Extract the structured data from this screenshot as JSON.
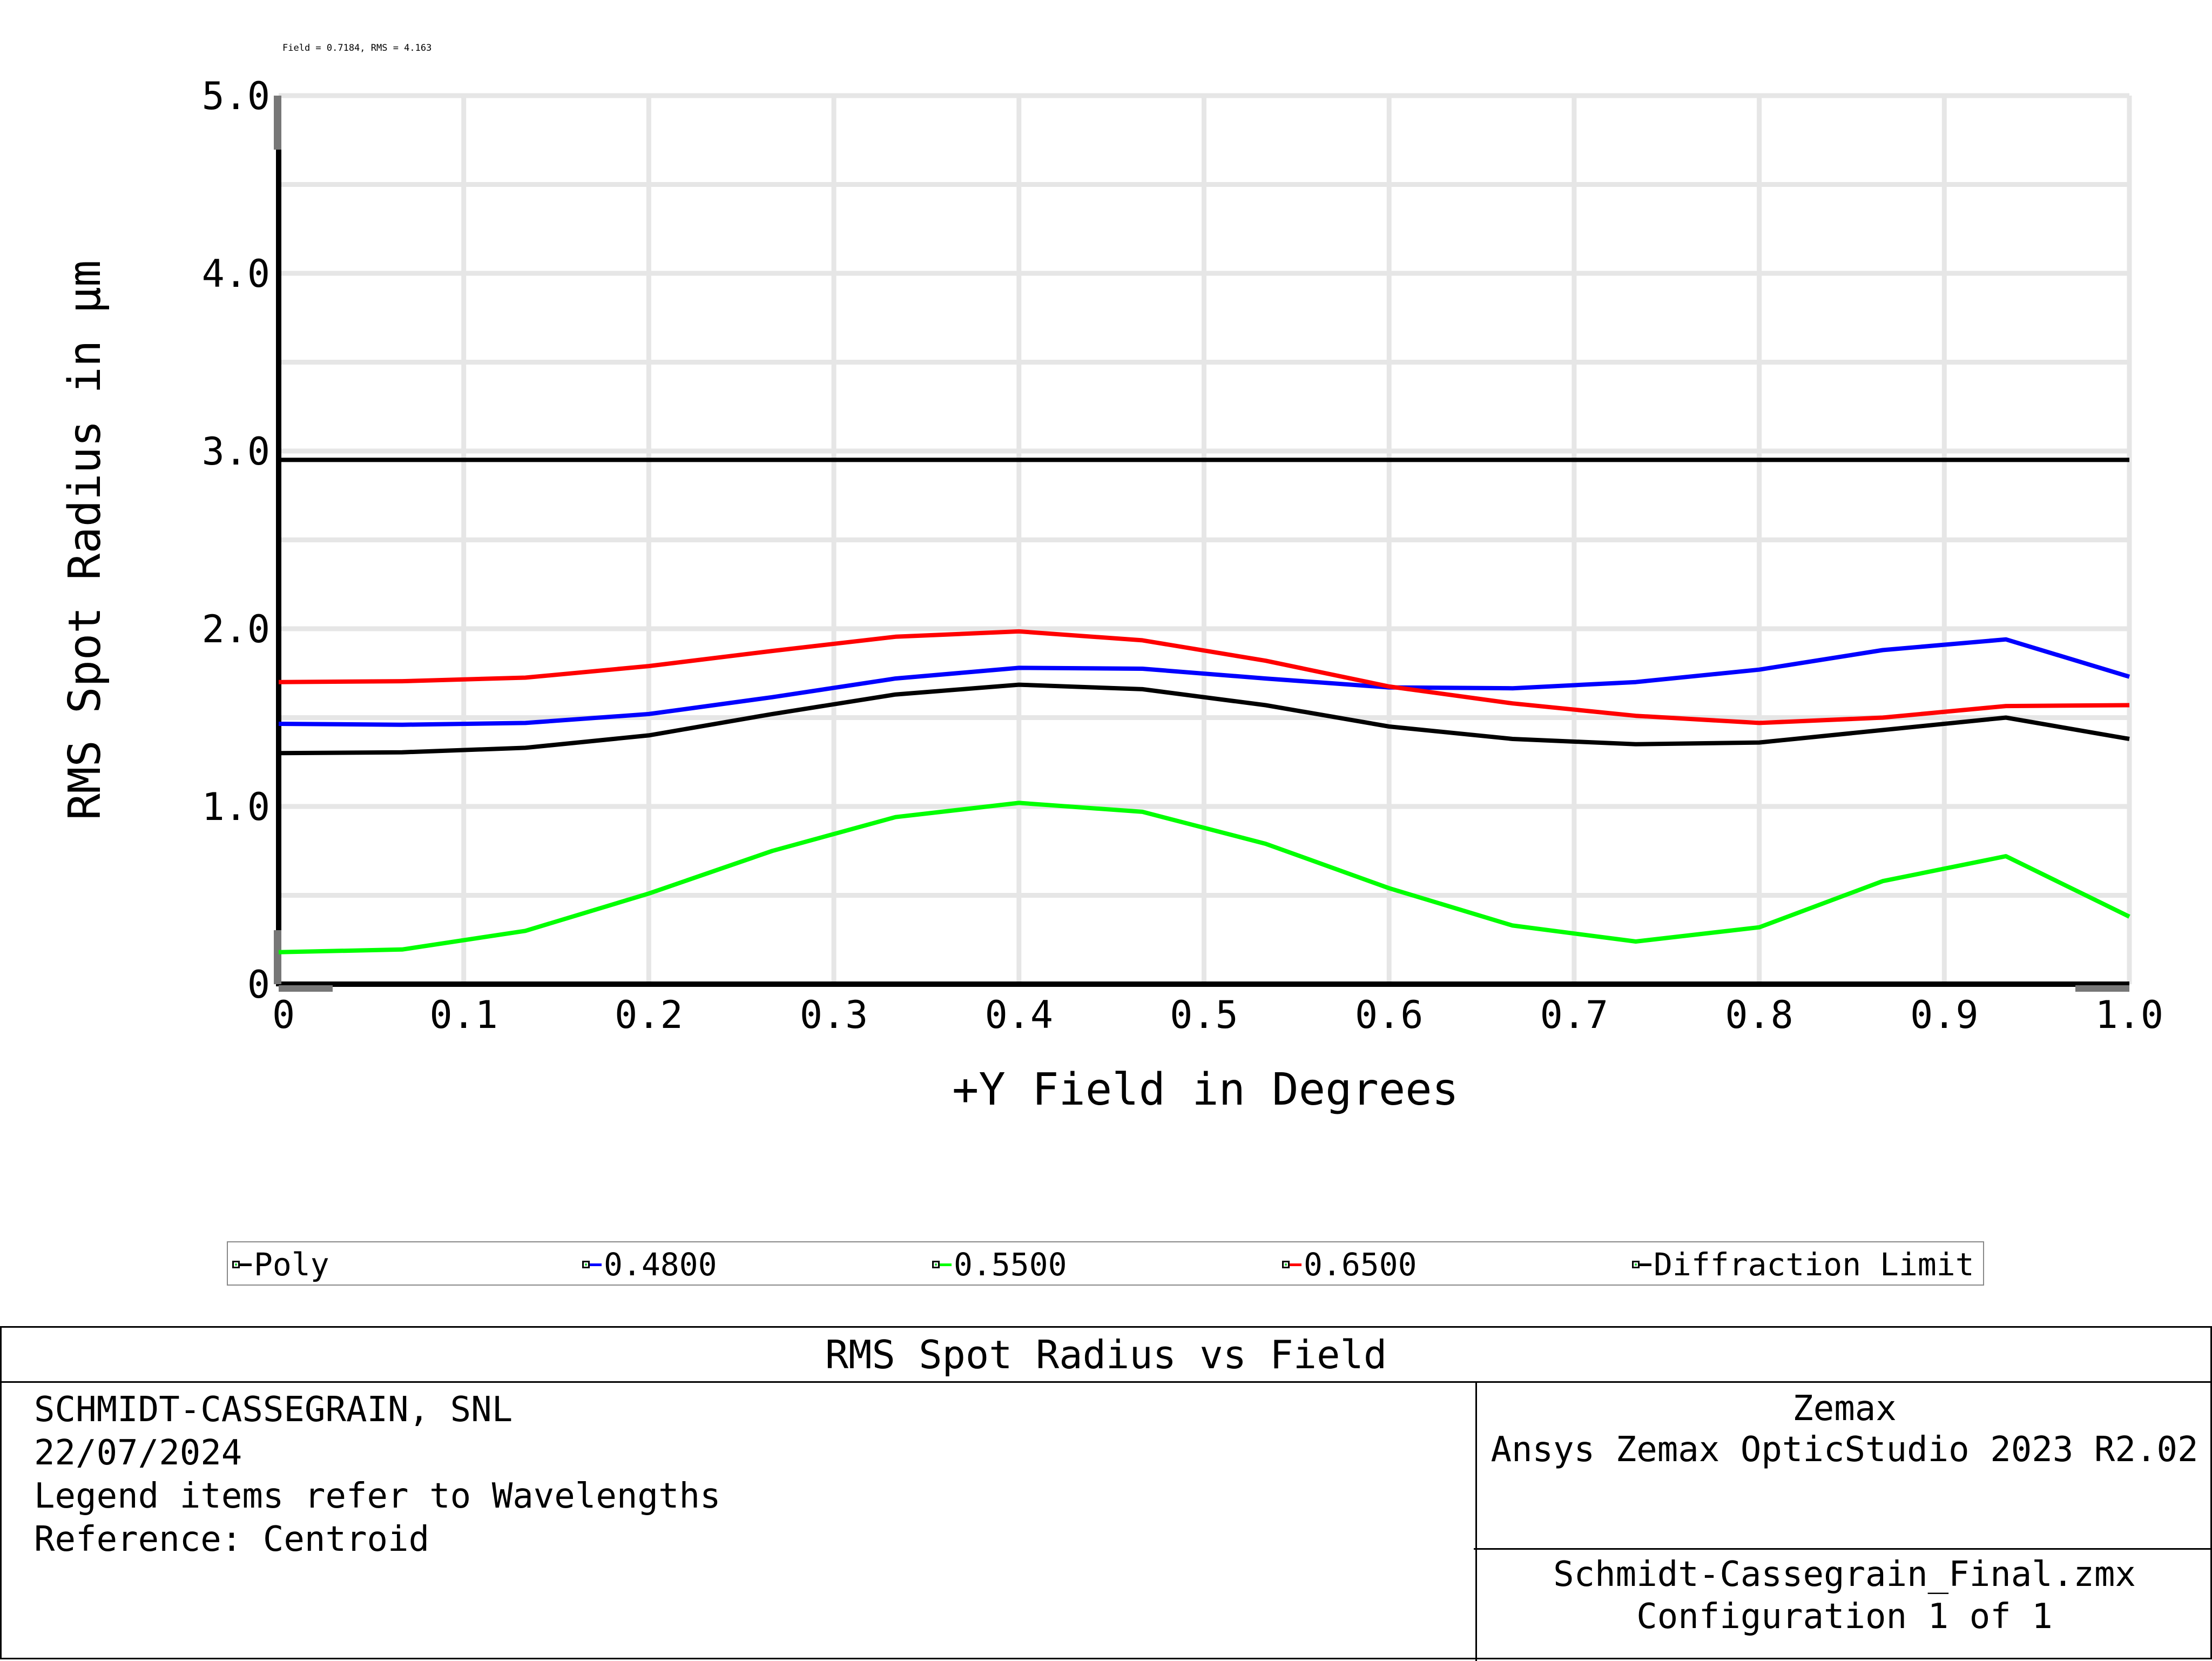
{
  "annotation": "Field = 0.7184, RMS = 4.163",
  "chart_data": {
    "type": "line",
    "xlabel": "+Y Field in Degrees",
    "ylabel": "RMS Spot Radius in µm",
    "xlim": [
      0,
      1.0
    ],
    "ylim": [
      0,
      5.0
    ],
    "x_ticks": [
      0,
      0.1,
      0.2,
      0.3,
      0.4,
      0.5,
      0.6,
      0.7,
      0.8,
      0.9,
      1.0
    ],
    "x_tick_labels": [
      "0",
      "0.1",
      "0.2",
      "0.3",
      "0.4",
      "0.5",
      "0.6",
      "0.7",
      "0.8",
      "0.9",
      "1.0"
    ],
    "y_ticks": [
      0,
      1.0,
      2.0,
      3.0,
      4.0,
      5.0
    ],
    "y_tick_labels": [
      "0",
      "1.0",
      "2.0",
      "3.0",
      "4.0",
      "5.0"
    ],
    "grid": true,
    "x": [
      0,
      0.0667,
      0.1333,
      0.2,
      0.2667,
      0.3333,
      0.4,
      0.4667,
      0.5333,
      0.6,
      0.6667,
      0.7333,
      0.8,
      0.8667,
      0.9333,
      1.0
    ],
    "series": [
      {
        "name": "Poly",
        "color": "#000000",
        "values": [
          1.3,
          1.305,
          1.33,
          1.4,
          1.52,
          1.63,
          1.685,
          1.66,
          1.57,
          1.45,
          1.38,
          1.35,
          1.36,
          1.43,
          1.5,
          1.38
        ]
      },
      {
        "name": "0.4800",
        "color": "#0000ff",
        "values": [
          1.465,
          1.46,
          1.47,
          1.52,
          1.615,
          1.72,
          1.78,
          1.775,
          1.72,
          1.67,
          1.665,
          1.7,
          1.77,
          1.88,
          1.94,
          1.73
        ]
      },
      {
        "name": "0.5500",
        "color": "#00ff00",
        "values": [
          0.18,
          0.195,
          0.3,
          0.51,
          0.75,
          0.94,
          1.02,
          0.97,
          0.79,
          0.54,
          0.33,
          0.24,
          0.32,
          0.58,
          0.72,
          0.38
        ]
      },
      {
        "name": "0.6500",
        "color": "#ff0000",
        "values": [
          1.7,
          1.705,
          1.725,
          1.79,
          1.875,
          1.955,
          1.985,
          1.935,
          1.82,
          1.675,
          1.58,
          1.51,
          1.47,
          1.5,
          1.565,
          1.57
        ]
      },
      {
        "name": "Diffraction Limit",
        "color": "#000000",
        "values": [
          2.95,
          2.95,
          2.95,
          2.95,
          2.95,
          2.95,
          2.95,
          2.95,
          2.95,
          2.95,
          2.95,
          2.95,
          2.95,
          2.95,
          2.95,
          2.95
        ]
      }
    ],
    "legend_placement": "bottom"
  },
  "legend": [
    {
      "label": "Poly",
      "color": "#000000"
    },
    {
      "label": "0.4800",
      "color": "#0000ff"
    },
    {
      "label": "0.5500",
      "color": "#00ff00"
    },
    {
      "label": "0.6500",
      "color": "#ff0000"
    },
    {
      "label": "Diffraction Limit",
      "color": "#000000"
    }
  ],
  "footer": {
    "title": "RMS Spot Radius vs Field",
    "left_lines": [
      "SCHMIDT-CASSEGRAIN, SNL",
      "22/07/2024",
      "Legend items refer to Wavelengths",
      "Reference: Centroid"
    ],
    "right_top_lines": [
      "Zemax",
      "Ansys Zemax OpticStudio 2023 R2.02"
    ],
    "right_bottom_lines": [
      "Schmidt-Cassegrain_Final.zmx",
      "Configuration 1 of 1"
    ]
  }
}
